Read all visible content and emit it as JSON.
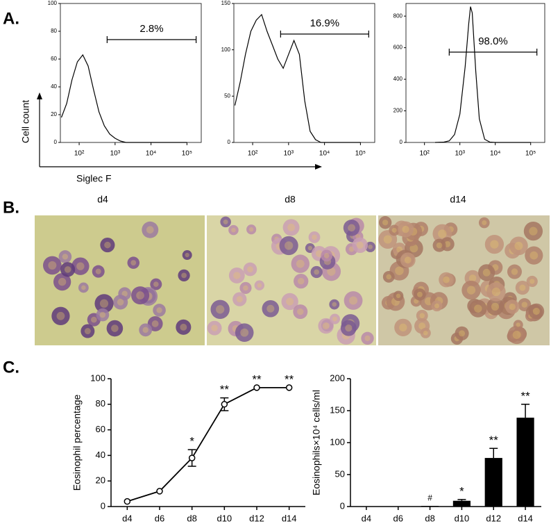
{
  "panel_labels": [
    "A.",
    "B.",
    "C."
  ],
  "panel_a": {
    "ylabel": "Cell count",
    "xlabel": "Siglec F"
  },
  "micrographs": {
    "labels": [
      "d4",
      "d8",
      "d14"
    ]
  },
  "chart_data": [
    {
      "type": "trace",
      "xscale": "log",
      "xlim": [
        30,
        250000
      ],
      "ylim": [
        0,
        100
      ],
      "xticks": [
        {
          "value": 100,
          "label": "10²"
        },
        {
          "value": 1000,
          "label": "10³"
        },
        {
          "value": 10000,
          "label": "10⁴"
        },
        {
          "value": 100000,
          "label": "10⁵"
        }
      ],
      "yticks": [
        0,
        20,
        40,
        60,
        80,
        100
      ],
      "color": "#000000",
      "x": [
        32,
        45,
        63,
        89,
        126,
        178,
        251,
        355,
        501,
        708,
        1000,
        1413,
        1995,
        5000,
        100000
      ],
      "values": [
        18,
        28,
        45,
        58,
        63,
        55,
        38,
        22,
        12,
        6,
        3,
        1,
        0,
        0,
        0
      ],
      "gate": [
        600,
        180000
      ],
      "gate_label": "2.8%"
    },
    {
      "type": "trace",
      "xscale": "log",
      "xlim": [
        30,
        250000
      ],
      "ylim": [
        0,
        150
      ],
      "xticks": [
        {
          "value": 100,
          "label": "10²"
        },
        {
          "value": 1000,
          "label": "10³"
        },
        {
          "value": 10000,
          "label": "10⁴"
        },
        {
          "value": 100000,
          "label": "10⁵"
        }
      ],
      "yticks": [
        0,
        50,
        100,
        150
      ],
      "color": "#000000",
      "x": [
        32,
        45,
        63,
        89,
        126,
        178,
        251,
        355,
        501,
        708,
        1000,
        1413,
        1995,
        2818,
        3981,
        5623,
        7943,
        100000
      ],
      "values": [
        40,
        65,
        95,
        120,
        132,
        138,
        120,
        105,
        90,
        80,
        95,
        110,
        95,
        45,
        12,
        3,
        0,
        0
      ],
      "gate": [
        600,
        170000
      ],
      "gate_label": "16.9%"
    },
    {
      "type": "trace",
      "xscale": "log",
      "xlim": [
        30,
        250000
      ],
      "ylim": [
        0,
        880
      ],
      "xticks": [
        {
          "value": 100,
          "label": "10²"
        },
        {
          "value": 1000,
          "label": "10³"
        },
        {
          "value": 10000,
          "label": "10⁴"
        },
        {
          "value": 100000,
          "label": "10⁵"
        }
      ],
      "yticks": [
        0,
        200,
        400,
        600,
        800
      ],
      "color": "#000000",
      "x": [
        200,
        355,
        501,
        708,
        1000,
        1413,
        1778,
        1995,
        2239,
        2818,
        3548,
        5012,
        7079,
        10000,
        100000
      ],
      "values": [
        0,
        2,
        10,
        50,
        180,
        480,
        750,
        860,
        820,
        450,
        150,
        20,
        2,
        0,
        0
      ],
      "gate": [
        500,
        150000
      ],
      "gate_label": "98.0%"
    },
    {
      "type": "line",
      "ylabel": "Eosinophil percentage",
      "categories": [
        "d4",
        "d6",
        "d8",
        "d10",
        "d12",
        "d14"
      ],
      "values": [
        4,
        12,
        38,
        80,
        93,
        93
      ],
      "errors": [
        null,
        null,
        6.5,
        5,
        null,
        null
      ],
      "significance": [
        null,
        null,
        "*",
        "**",
        "**",
        "**"
      ],
      "ylim": [
        0,
        100
      ],
      "yticks": [
        0,
        20,
        40,
        60,
        80,
        100
      ],
      "color": "#000000"
    },
    {
      "type": "bar",
      "ylabel": "Eosinophils×10⁴ cells/ml",
      "categories": [
        "d4",
        "d6",
        "d8",
        "d10",
        "d12",
        "d14"
      ],
      "values": [
        0,
        0.3,
        1,
        9,
        76,
        139
      ],
      "errors": [
        null,
        null,
        null,
        2,
        15,
        21
      ],
      "significance": [
        null,
        null,
        "#",
        "*",
        "**",
        "**"
      ],
      "ylim": [
        0,
        200
      ],
      "yticks": [
        0,
        50,
        100,
        150,
        200
      ],
      "color": "#000000"
    }
  ]
}
